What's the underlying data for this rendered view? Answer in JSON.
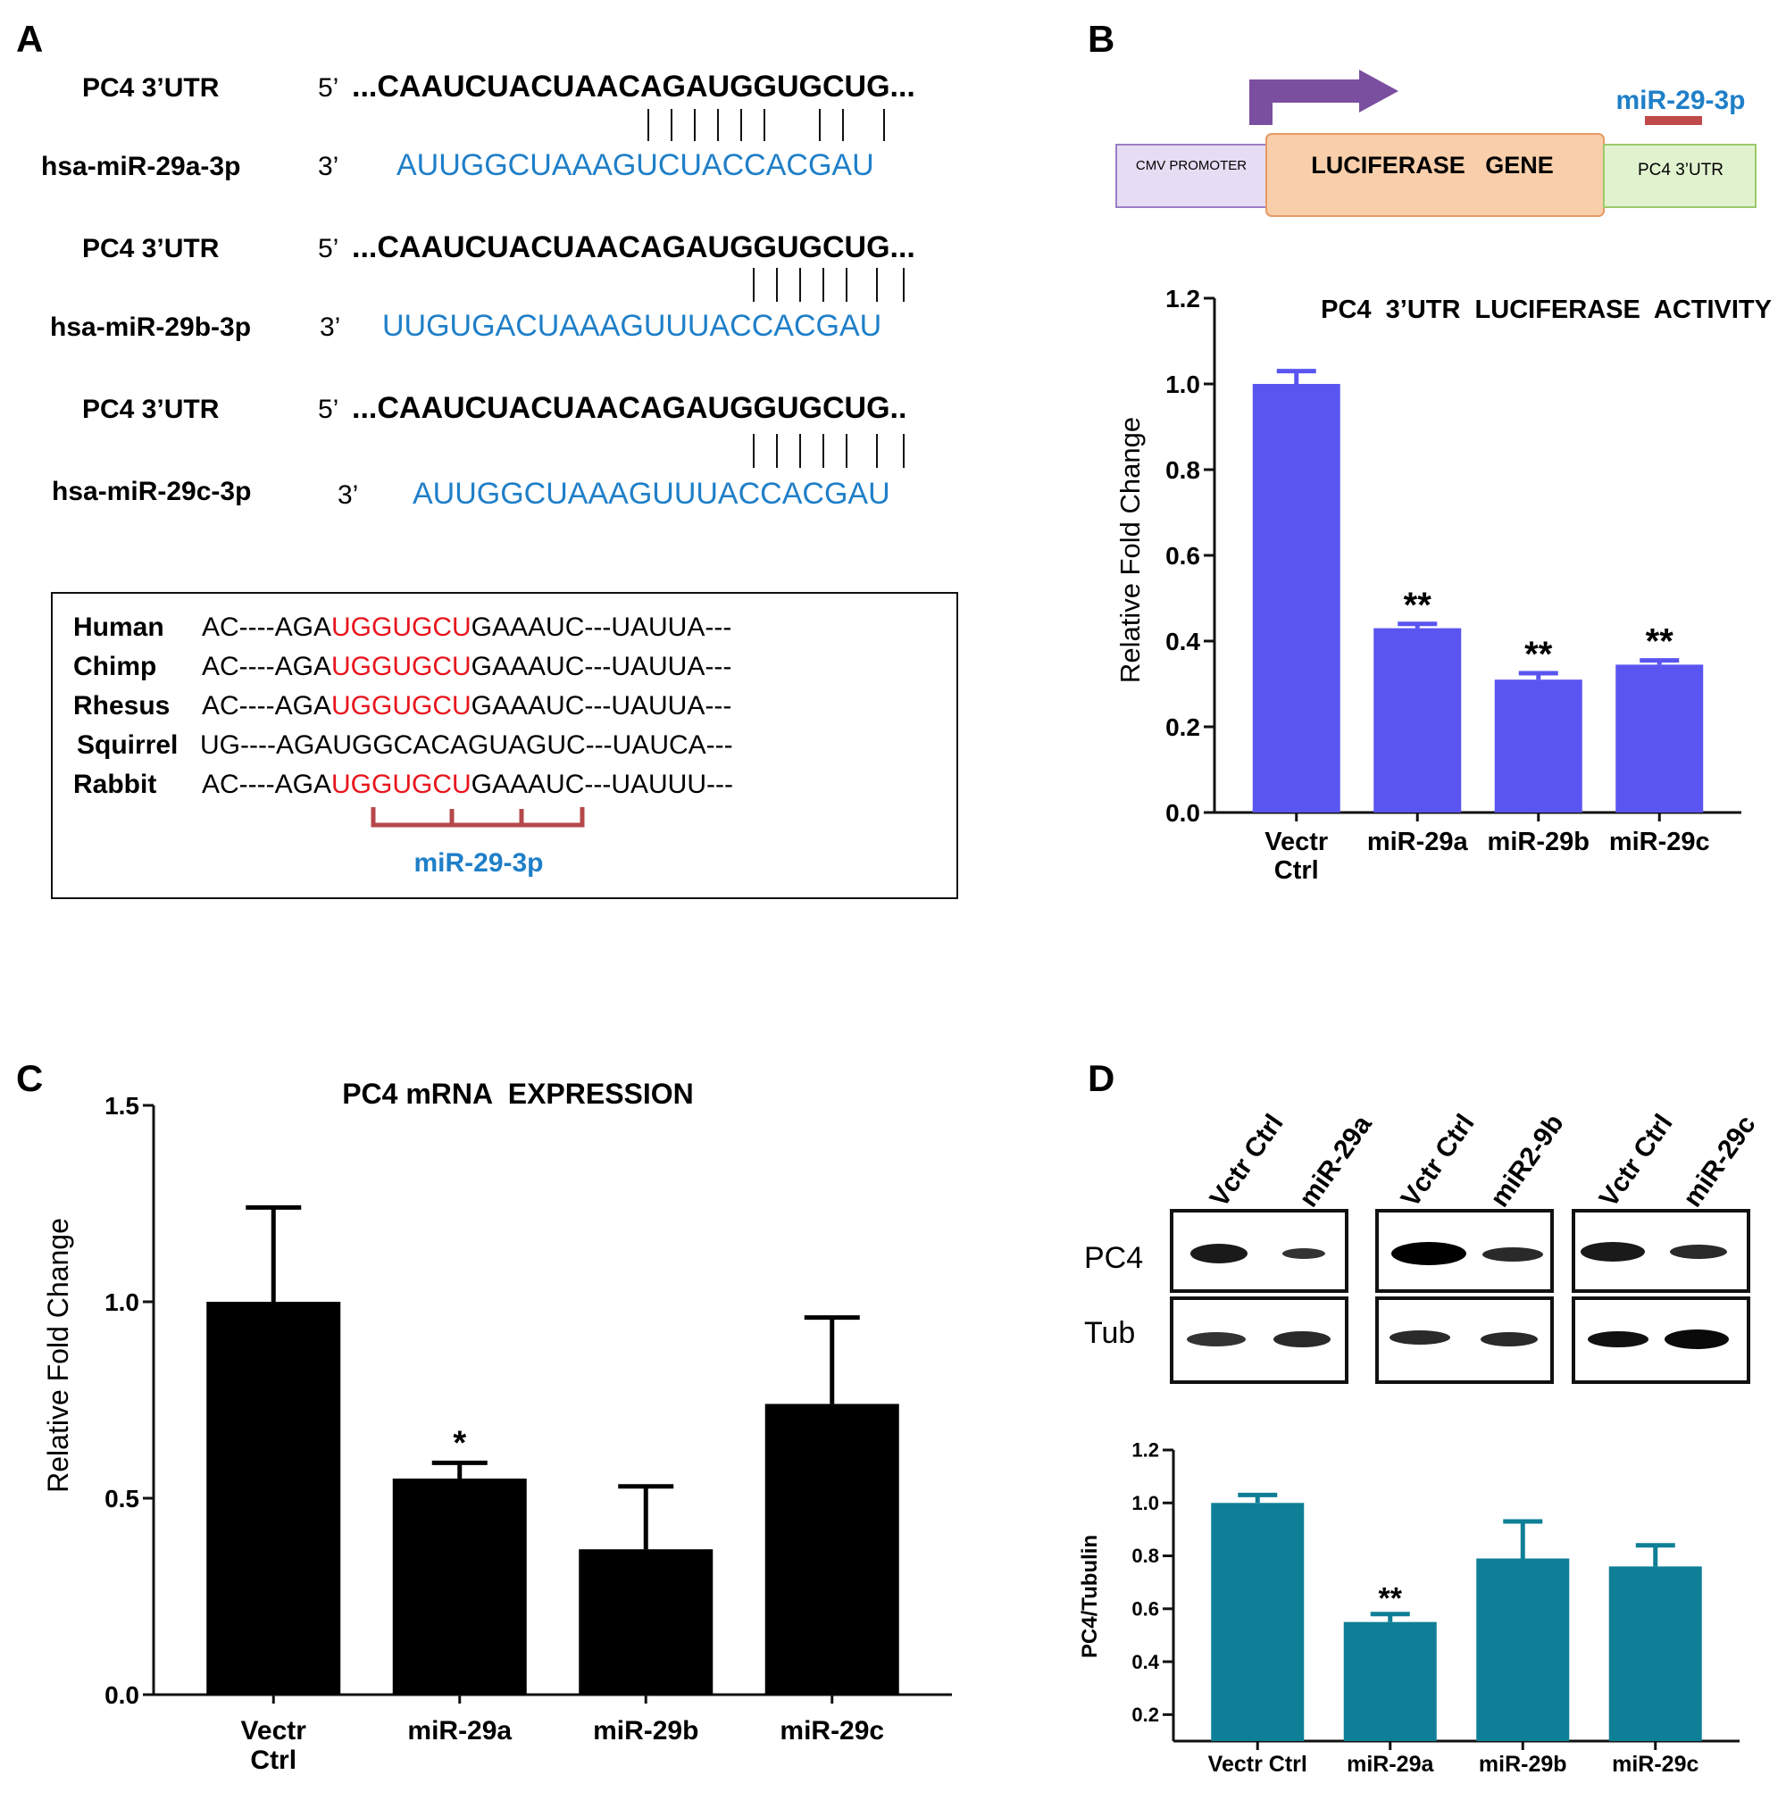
{
  "panels": {
    "a": "A",
    "b": "B",
    "c": "C",
    "d": "D"
  },
  "panel_a": {
    "alignments": [
      {
        "utr_label": "PC4 3’UTR",
        "utr_end": "5’",
        "utr_seq": "...CAAUCUACUAACAGAUGGUGCUG...",
        "mir_label": "hsa-miR-29a-3p",
        "mir_end": "3’",
        "mir_seq": "AUUGGCUAAAGUCUACCACGAU",
        "pairs": 9
      },
      {
        "utr_label": "PC4 3’UTR",
        "utr_end": "5’",
        "utr_seq": "...CAAUCUACUAACAGAUGGUGCUG...",
        "mir_label": "hsa-miR-29b-3p",
        "mir_end": "3’",
        "mir_seq": "UUGUGACUAAAGUUUACCACGAU",
        "pairs": 7
      },
      {
        "utr_label": "PC4 3’UTR",
        "utr_end": "5’",
        "utr_seq": "...CAAUCUACUAACAGAUGGUGCUG..",
        "mir_label": "hsa-miR-29c-3p",
        "mir_end": "3’",
        "mir_seq": "AUUGGCUAAAGUUUACCACGAU",
        "pairs": 7
      }
    ],
    "conservation": [
      {
        "species": "Human",
        "pre": "AC----AGA",
        "seed": "UGGUGCU",
        "post": "GAAAUC---UAUUA---"
      },
      {
        "species": "Chimp",
        "pre": "AC----AGA",
        "seed": "UGGUGCU",
        "post": "GAAAUC---UAUUA---"
      },
      {
        "species": "Rhesus",
        "pre": "AC----AGA",
        "seed": "UGGUGCU",
        "post": "GAAAUC---UAUUA---"
      },
      {
        "species": "Squirrel",
        "pre": "UG----AGAUGGCACAGUAGUC---UAUCA---",
        "seed": "",
        "post": ""
      },
      {
        "species": "Rabbit",
        "pre": "AC----AGA",
        "seed": "UGGUGCU",
        "post": "GAAAUC---UAUUU---"
      }
    ],
    "seed_label": "miR-29-3p"
  },
  "panel_b_construct": {
    "promoter": "CMV PROMOTER",
    "gene": "LUCIFERASE   GENE",
    "utr": "PC4 3’UTR",
    "site_label": "miR-29-3p"
  },
  "panel_d_blot": {
    "groups": [
      {
        "lanes": [
          "Vctr Ctrl",
          "miR-29a"
        ]
      },
      {
        "lanes": [
          "Vctr Ctrl",
          "miR2-9b"
        ]
      },
      {
        "lanes": [
          "Vctr Ctrl",
          "miR-29c"
        ]
      }
    ],
    "rows": [
      "PC4",
      "Tub"
    ]
  },
  "colors": {
    "blue_text": "#1f7fc8",
    "red_seed": "#e8141c",
    "bar_b": "#5a55f0",
    "bar_c": "#000000",
    "bar_d": "#0e7f96",
    "bracket": "#b5474b"
  },
  "chart_data": [
    {
      "id": "B",
      "type": "bar",
      "title": "PC4  3’UTR  LUCIFERASE  ACTIVITY",
      "ylabel": "Relative Fold Change",
      "xlabel": "",
      "categories": [
        "Vectr\nCtrl",
        "miR-29a",
        "miR-29b",
        "miR-29c"
      ],
      "values": [
        1.0,
        0.43,
        0.31,
        0.345
      ],
      "errors": [
        0.03,
        0.01,
        0.015,
        0.01
      ],
      "significance": [
        "",
        "**",
        "**",
        "**"
      ],
      "ylim": [
        0,
        1.2
      ],
      "yticks": [
        "0.0",
        "0.2",
        "0.4",
        "0.6",
        "0.8",
        "1.0",
        "1.2"
      ],
      "grid": false
    },
    {
      "id": "C",
      "type": "bar",
      "title": "PC4 mRNA  EXPRESSION",
      "ylabel": "Relative Fold Change",
      "xlabel": "",
      "categories": [
        "Vectr\nCtrl",
        "miR-29a",
        "miR-29b",
        "miR-29c"
      ],
      "values": [
        1.0,
        0.55,
        0.37,
        0.74
      ],
      "errors": [
        0.24,
        0.04,
        0.16,
        0.22
      ],
      "significance": [
        "",
        "*",
        "",
        ""
      ],
      "ylim": [
        0,
        1.5
      ],
      "yticks": [
        "0.0",
        "0.5",
        "1.0",
        "1.5"
      ],
      "grid": false
    },
    {
      "id": "D",
      "type": "bar",
      "title": "",
      "ylabel": "PC4/Tubulin",
      "xlabel": "",
      "categories": [
        "Vectr Ctrl",
        "miR-29a",
        "miR-29b",
        "miR-29c"
      ],
      "values": [
        1.0,
        0.55,
        0.79,
        0.76
      ],
      "errors": [
        0.03,
        0.03,
        0.14,
        0.08
      ],
      "significance": [
        "",
        "**",
        "",
        ""
      ],
      "ylim": [
        0.1,
        1.2
      ],
      "yticks": [
        "0.2",
        "0.4",
        "0.6",
        "0.8",
        "1.0",
        "1.2"
      ],
      "grid": false
    }
  ]
}
